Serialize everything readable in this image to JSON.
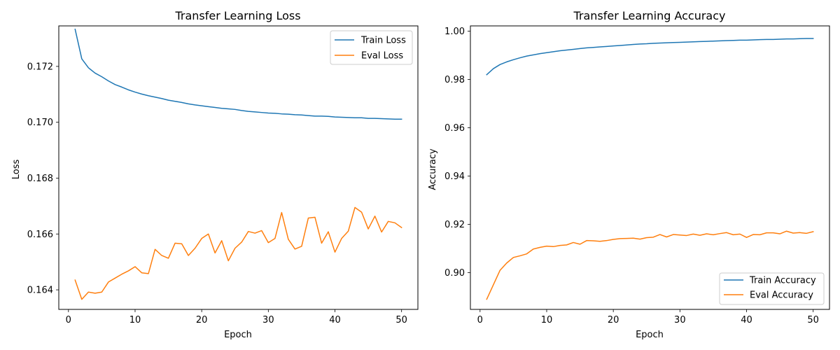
{
  "chart_data": [
    {
      "type": "line",
      "title": "Transfer Learning Loss",
      "xlabel": "Epoch",
      "ylabel": "Loss",
      "xlim": [
        -1.45,
        52.45
      ],
      "ylim": [
        0.1633,
        0.17345
      ],
      "xticks": [
        0,
        10,
        20,
        30,
        40,
        50
      ],
      "yticks": [
        0.164,
        0.166,
        0.168,
        0.17,
        0.172
      ],
      "ytick_labels": [
        "0.164",
        "0.166",
        "0.168",
        "0.170",
        "0.172"
      ],
      "grid": false,
      "legend": "top-right",
      "x": [
        1,
        2,
        3,
        4,
        5,
        6,
        7,
        8,
        9,
        10,
        11,
        12,
        13,
        14,
        15,
        16,
        17,
        18,
        19,
        20,
        21,
        22,
        23,
        24,
        25,
        26,
        27,
        28,
        29,
        30,
        31,
        32,
        33,
        34,
        35,
        36,
        37,
        38,
        39,
        40,
        41,
        42,
        43,
        44,
        45,
        46,
        47,
        48,
        49,
        50
      ],
      "series": [
        {
          "name": "Train Loss",
          "color": "#1f77b4",
          "values": [
            0.17333,
            0.17227,
            0.17195,
            0.17176,
            0.17163,
            0.17148,
            0.17135,
            0.17126,
            0.17116,
            0.17108,
            0.17101,
            0.17095,
            0.1709,
            0.17085,
            0.17079,
            0.17075,
            0.17071,
            0.17066,
            0.17062,
            0.17059,
            0.17056,
            0.17053,
            0.1705,
            0.17048,
            0.17046,
            0.17042,
            0.17039,
            0.17037,
            0.17035,
            0.17033,
            0.17032,
            0.1703,
            0.17029,
            0.17027,
            0.17026,
            0.17024,
            0.17022,
            0.17022,
            0.17021,
            0.17019,
            0.17018,
            0.17017,
            0.17016,
            0.17016,
            0.17014,
            0.17014,
            0.17013,
            0.17012,
            0.17011,
            0.17011
          ]
        },
        {
          "name": "Eval Loss",
          "color": "#ff7f0e",
          "values": [
            0.16435,
            0.16366,
            0.16392,
            0.16388,
            0.16392,
            0.16428,
            0.16442,
            0.16456,
            0.16468,
            0.16483,
            0.16461,
            0.16458,
            0.16545,
            0.16523,
            0.16513,
            0.16567,
            0.16565,
            0.16523,
            0.16549,
            0.16584,
            0.166,
            0.16532,
            0.16576,
            0.16504,
            0.16549,
            0.16571,
            0.16609,
            0.16603,
            0.16612,
            0.16569,
            0.16584,
            0.16677,
            0.16581,
            0.16546,
            0.16556,
            0.16657,
            0.1666,
            0.16567,
            0.16608,
            0.16535,
            0.16584,
            0.1661,
            0.16695,
            0.16678,
            0.16618,
            0.16664,
            0.16607,
            0.16645,
            0.1664,
            0.16623
          ]
        }
      ]
    },
    {
      "type": "line",
      "title": "Transfer Learning Accuracy",
      "xlabel": "Epoch",
      "ylabel": "Accuracy",
      "xlim": [
        -1.45,
        52.45
      ],
      "ylim": [
        0.8848,
        1.0022
      ],
      "xticks": [
        0,
        10,
        20,
        30,
        40,
        50
      ],
      "yticks": [
        0.9,
        0.92,
        0.94,
        0.96,
        0.98,
        1.0
      ],
      "ytick_labels": [
        "0.90",
        "0.92",
        "0.94",
        "0.96",
        "0.98",
        "1.00"
      ],
      "grid": false,
      "legend": "bottom-right",
      "x": [
        1,
        2,
        3,
        4,
        5,
        6,
        7,
        8,
        9,
        10,
        11,
        12,
        13,
        14,
        15,
        16,
        17,
        18,
        19,
        20,
        21,
        22,
        23,
        24,
        25,
        26,
        27,
        28,
        29,
        30,
        31,
        32,
        33,
        34,
        35,
        36,
        37,
        38,
        39,
        40,
        41,
        42,
        43,
        44,
        45,
        46,
        47,
        48,
        49,
        50
      ],
      "series": [
        {
          "name": "Train Accuracy",
          "color": "#1f77b4",
          "values": [
            0.982,
            0.9845,
            0.9862,
            0.9873,
            0.9882,
            0.989,
            0.9897,
            0.9902,
            0.9907,
            0.9911,
            0.9915,
            0.9919,
            0.9922,
            0.9925,
            0.9928,
            0.9931,
            0.9933,
            0.9935,
            0.9937,
            0.9939,
            0.9941,
            0.9943,
            0.9945,
            0.9947,
            0.9948,
            0.995,
            0.9951,
            0.9952,
            0.9953,
            0.9954,
            0.9955,
            0.9956,
            0.9957,
            0.9958,
            0.9959,
            0.996,
            0.9961,
            0.9962,
            0.9963,
            0.9963,
            0.9964,
            0.9965,
            0.9966,
            0.9966,
            0.9967,
            0.9968,
            0.9968,
            0.9969,
            0.997,
            0.997
          ]
        },
        {
          "name": "Eval Accuracy",
          "color": "#ff7f0e",
          "values": [
            0.889,
            0.895,
            0.901,
            0.904,
            0.9063,
            0.907,
            0.9078,
            0.9098,
            0.9105,
            0.911,
            0.9108,
            0.9113,
            0.9115,
            0.9125,
            0.9118,
            0.9133,
            0.9132,
            0.913,
            0.9133,
            0.9138,
            0.9141,
            0.9142,
            0.9143,
            0.9139,
            0.9145,
            0.9147,
            0.9158,
            0.9148,
            0.9158,
            0.9156,
            0.9154,
            0.916,
            0.9155,
            0.9161,
            0.9157,
            0.9162,
            0.9166,
            0.9157,
            0.916,
            0.9146,
            0.9158,
            0.9157,
            0.9165,
            0.9165,
            0.9161,
            0.9172,
            0.9164,
            0.9166,
            0.9163,
            0.917
          ]
        }
      ]
    }
  ]
}
